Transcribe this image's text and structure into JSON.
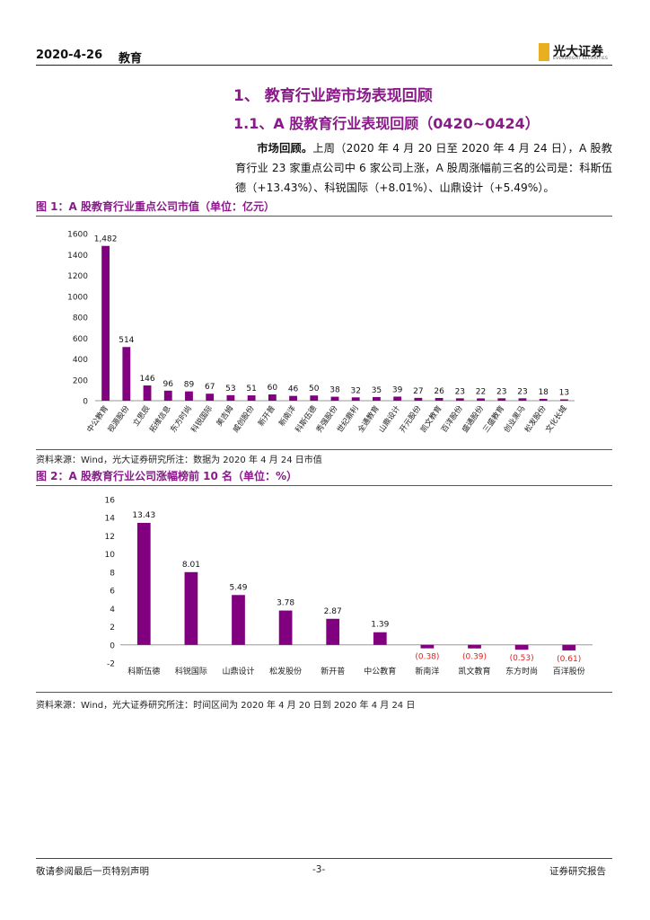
{
  "header": {
    "date": "2020-4-26",
    "section": "教育",
    "logo_cn": "光大证券",
    "logo_en": "EVERBRIGHT SECURITIES"
  },
  "heading1": "1、 教育行业跨市场表现回顾",
  "heading2": "1.1、A 股教育行业表现回顾（0420~0424）",
  "paragraph": {
    "lead": "市场回顾。",
    "body": "上周（2020 年 4 月 20 日至 2020 年 4 月 24 日），A 股教育行业 23 家重点公司中 6 家公司上涨，A 股周涨幅前三名的公司是：科斯伍德（+13.43%）、科锐国际（+8.01%）、山鼎设计（+5.49%）。"
  },
  "figure1": {
    "title": "图 1：A 股教育行业重点公司市值（单位：亿元）",
    "source": "资料来源：Wind，光大证券研究所注：数据为 2020 年 4 月 24 日市值"
  },
  "figure2": {
    "title": "图 2：A 股教育行业公司涨幅榜前 10 名（单位：%）",
    "source": "资料来源：Wind，光大证券研究所注：时间区间为 2020 年 4 月 20 日到 2020 年 4 月 24 日"
  },
  "footer": {
    "left": "敬请参阅最后一页特别声明",
    "center": "-3-",
    "right": "证券研究报告"
  },
  "chart_data": [
    {
      "type": "bar",
      "categories": [
        "中公教育",
        "视源股份",
        "立思辰",
        "拓维信息",
        "东方时尚",
        "科锐国际",
        "美吉姆",
        "威创股份",
        "新开普",
        "新南洋",
        "科斯伍德",
        "秀强股份",
        "世纪鼎利",
        "全通教育",
        "山鼎设计",
        "开元股份",
        "凯文教育",
        "百洋股份",
        "盛通股份",
        "三盛教育",
        "创业黑马",
        "松发股份",
        "文化长城"
      ],
      "values": [
        1482,
        514,
        146,
        96,
        89,
        67,
        53,
        51,
        60,
        46,
        50,
        38,
        32,
        35,
        39,
        27,
        26,
        23,
        22,
        23,
        23,
        18,
        13
      ],
      "data_labels": [
        "1,482",
        "514",
        "146",
        "96",
        "89",
        "67",
        "53",
        "51",
        "60",
        "46",
        "50",
        "38",
        "32",
        "35",
        "39",
        "27",
        "26",
        "23",
        "22",
        "23",
        "23",
        "18",
        "13"
      ],
      "yticks": [
        "0",
        "200",
        "400",
        "600",
        "800",
        "1000",
        "1200",
        "1400",
        "1600"
      ],
      "ylim": [
        0,
        1600
      ],
      "bar_color": "#800080",
      "grid": false
    },
    {
      "type": "bar",
      "categories": [
        "科斯伍德",
        "科锐国际",
        "山鼎设计",
        "松发股份",
        "新开普",
        "中公教育",
        "新南洋",
        "凯文教育",
        "东方时尚",
        "百洋股份"
      ],
      "values": [
        13.43,
        8.01,
        5.49,
        3.78,
        2.87,
        1.39,
        -0.38,
        -0.39,
        -0.53,
        -0.61
      ],
      "data_labels": [
        "13.43",
        "8.01",
        "5.49",
        "3.78",
        "2.87",
        "1.39",
        "(0.38)",
        "(0.39)",
        "(0.53)",
        "(0.61)"
      ],
      "yticks": [
        "-2",
        "0",
        "2",
        "4",
        "6",
        "8",
        "10",
        "12",
        "14",
        "16"
      ],
      "ylim": [
        -2,
        16
      ],
      "bar_color": "#800080",
      "negative_label_color": "#e02020",
      "grid": false
    }
  ]
}
